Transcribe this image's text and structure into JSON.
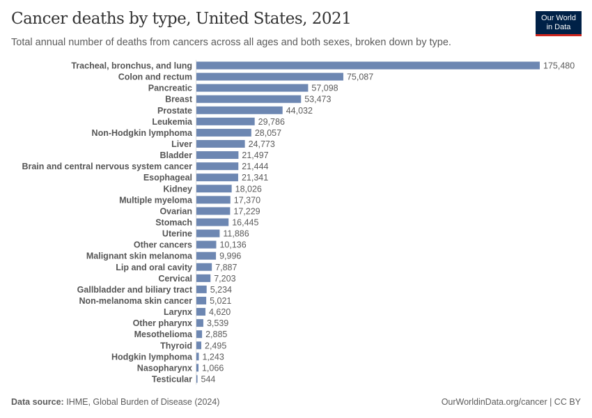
{
  "chart_data": {
    "type": "bar",
    "orientation": "horizontal",
    "title": "Cancer deaths by type, United States, 2021",
    "subtitle": "Total annual number of deaths from cancers across all ages and both sexes, broken down by type.",
    "categories": [
      "Tracheal, bronchus, and lung",
      "Colon and rectum",
      "Pancreatic",
      "Breast",
      "Prostate",
      "Leukemia",
      "Non-Hodgkin lymphoma",
      "Liver",
      "Bladder",
      "Brain and central nervous system cancer",
      "Esophageal",
      "Kidney",
      "Multiple myeloma",
      "Ovarian",
      "Stomach",
      "Uterine",
      "Other cancers",
      "Malignant skin melanoma",
      "Lip and oral cavity",
      "Cervical",
      "Gallbladder and biliary tract",
      "Non-melanoma skin cancer",
      "Larynx",
      "Other pharynx",
      "Mesothelioma",
      "Thyroid",
      "Hodgkin lymphoma",
      "Nasopharynx",
      "Testicular"
    ],
    "values": [
      175480,
      75087,
      57098,
      53473,
      44032,
      29786,
      28057,
      24773,
      21497,
      21444,
      21341,
      18026,
      17370,
      17229,
      16445,
      11886,
      10136,
      9996,
      7887,
      7203,
      5234,
      5021,
      4620,
      3539,
      2885,
      2495,
      1243,
      1066,
      544
    ],
    "value_labels": [
      "175,480",
      "75,087",
      "57,098",
      "53,473",
      "44,032",
      "29,786",
      "28,057",
      "24,773",
      "21,497",
      "21,444",
      "21,341",
      "18,026",
      "17,370",
      "17,229",
      "16,445",
      "11,886",
      "10,136",
      "9,996",
      "7,887",
      "7,203",
      "5,234",
      "5,021",
      "4,620",
      "3,539",
      "2,885",
      "2,495",
      "1,243",
      "1,066",
      "544"
    ],
    "bar_color": "#6d87b2",
    "grid": false,
    "legend": "none"
  },
  "logo": {
    "line1": "Our World",
    "line2": "in Data"
  },
  "footer": {
    "source_label": "Data source:",
    "source": "IHME, Global Burden of Disease (2024)",
    "credit": "OurWorldinData.org/cancer | CC BY"
  }
}
